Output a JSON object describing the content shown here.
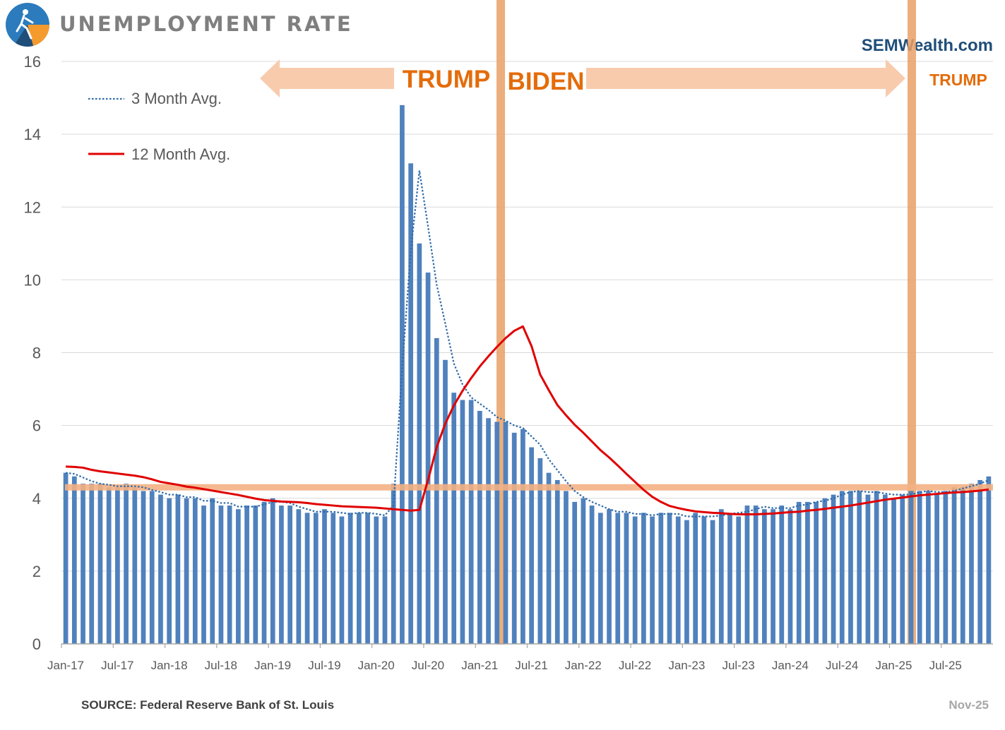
{
  "header": {
    "title": "UNEMPLOYMENT RATE",
    "brand": "SEMWealth.com"
  },
  "footer": {
    "source": "SOURCE:  Federal Reserve Bank of St. Louis",
    "date": "Nov-25"
  },
  "legend": {
    "three_month": "3 Month Avg.",
    "twelve_month": "12 Month Avg."
  },
  "annotations": {
    "trump_1": "TRUMP",
    "biden": "BIDEN",
    "trump_2": "TRUMP"
  },
  "colors": {
    "bar": "#4f81bd",
    "three_month_line": "#2e6aa8",
    "twelve_month_line": "#e00000",
    "highlight": "#f4b183",
    "band": "#e9a066",
    "label_orange": "#e46c0a",
    "brand_blue": "#1f4e79",
    "title_gray": "#7f7f7f"
  },
  "chart_data": {
    "type": "bar",
    "title": "UNEMPLOYMENT RATE",
    "xlabel": "",
    "ylabel": "",
    "ylim": [
      0,
      16
    ],
    "yticks": [
      0,
      2,
      4,
      6,
      8,
      10,
      12,
      14,
      16
    ],
    "xtick_labels": [
      "Jan-17",
      "Jul-17",
      "Jan-18",
      "Jul-18",
      "Jan-19",
      "Jul-19",
      "Jan-20",
      "Jul-20",
      "Jan-21",
      "Jul-21",
      "Jan-22",
      "Jul-22",
      "Jan-23",
      "Jul-23",
      "Jan-24",
      "Jul-24",
      "Jan-25",
      "Jul-25"
    ],
    "start_month": "Jan-17",
    "end_month": "Nov-25",
    "reference_line": 4.3,
    "administration_changes": [
      "Jan-21",
      "Jan-25"
    ],
    "series": [
      {
        "name": "Unemployment Rate",
        "type": "bar",
        "values": [
          4.7,
          4.6,
          4.4,
          4.4,
          4.4,
          4.3,
          4.3,
          4.4,
          4.3,
          4.2,
          4.2,
          4.1,
          4.0,
          4.1,
          4.0,
          4.0,
          3.8,
          4.0,
          3.8,
          3.8,
          3.7,
          3.8,
          3.8,
          3.9,
          4.0,
          3.8,
          3.8,
          3.7,
          3.6,
          3.6,
          3.7,
          3.6,
          3.5,
          3.6,
          3.6,
          3.6,
          3.5,
          3.5,
          4.4,
          14.8,
          13.2,
          11.0,
          10.2,
          8.4,
          7.8,
          6.9,
          6.7,
          6.7,
          6.4,
          6.2,
          6.1,
          6.1,
          5.8,
          5.9,
          5.4,
          5.1,
          4.7,
          4.5,
          4.2,
          3.9,
          4.0,
          3.8,
          3.6,
          3.7,
          3.6,
          3.6,
          3.5,
          3.6,
          3.5,
          3.6,
          3.6,
          3.5,
          3.4,
          3.6,
          3.5,
          3.4,
          3.7,
          3.6,
          3.5,
          3.8,
          3.8,
          3.7,
          3.7,
          3.8,
          3.7,
          3.9,
          3.9,
          3.9,
          4.0,
          4.1,
          4.2,
          4.2,
          4.2,
          4.1,
          4.2,
          4.1,
          4.0,
          4.1,
          4.2,
          4.2,
          4.2,
          4.1,
          4.2,
          4.3,
          4.3,
          4.4,
          4.5,
          4.6
        ]
      },
      {
        "name": "3 Month Avg.",
        "type": "line",
        "style": "dotted",
        "values": [
          4.7,
          4.67,
          4.57,
          4.47,
          4.4,
          4.37,
          4.33,
          4.33,
          4.33,
          4.3,
          4.23,
          4.17,
          4.1,
          4.1,
          4.03,
          4.03,
          3.93,
          3.93,
          3.87,
          3.87,
          3.77,
          3.77,
          3.77,
          3.83,
          3.9,
          3.9,
          3.87,
          3.77,
          3.7,
          3.63,
          3.63,
          3.63,
          3.6,
          3.57,
          3.6,
          3.6,
          3.57,
          3.53,
          3.8,
          7.57,
          10.8,
          13.0,
          11.47,
          9.87,
          8.8,
          7.7,
          7.13,
          6.77,
          6.6,
          6.43,
          6.23,
          6.13,
          6.0,
          5.93,
          5.7,
          5.47,
          5.07,
          4.77,
          4.47,
          4.2,
          4.03,
          3.9,
          3.8,
          3.7,
          3.63,
          3.63,
          3.57,
          3.57,
          3.53,
          3.57,
          3.57,
          3.57,
          3.5,
          3.5,
          3.5,
          3.5,
          3.53,
          3.57,
          3.6,
          3.63,
          3.7,
          3.77,
          3.73,
          3.73,
          3.73,
          3.8,
          3.83,
          3.9,
          3.93,
          4.0,
          4.1,
          4.17,
          4.2,
          4.17,
          4.17,
          4.13,
          4.1,
          4.1,
          4.1,
          4.17,
          4.2,
          4.17,
          4.17,
          4.2,
          4.27,
          4.33,
          4.4,
          4.5
        ]
      },
      {
        "name": "12 Month Avg.",
        "type": "line",
        "style": "solid",
        "values": [
          4.87,
          4.86,
          4.84,
          4.78,
          4.74,
          4.71,
          4.68,
          4.65,
          4.62,
          4.58,
          4.52,
          4.45,
          4.41,
          4.37,
          4.32,
          4.29,
          4.25,
          4.21,
          4.17,
          4.13,
          4.09,
          4.04,
          3.99,
          3.95,
          3.93,
          3.91,
          3.9,
          3.89,
          3.87,
          3.84,
          3.82,
          3.8,
          3.78,
          3.77,
          3.76,
          3.75,
          3.74,
          3.72,
          3.7,
          3.68,
          3.66,
          3.68,
          4.5,
          5.4,
          6.05,
          6.55,
          6.95,
          7.3,
          7.62,
          7.9,
          8.16,
          8.4,
          8.6,
          8.72,
          8.18,
          7.4,
          6.97,
          6.56,
          6.28,
          6.02,
          5.8,
          5.56,
          5.32,
          5.12,
          4.9,
          4.67,
          4.45,
          4.23,
          4.04,
          3.9,
          3.79,
          3.73,
          3.68,
          3.64,
          3.62,
          3.6,
          3.59,
          3.57,
          3.56,
          3.56,
          3.56,
          3.57,
          3.58,
          3.6,
          3.62,
          3.63,
          3.66,
          3.68,
          3.71,
          3.74,
          3.77,
          3.8,
          3.84,
          3.88,
          3.92,
          3.96,
          3.99,
          4.02,
          4.05,
          4.08,
          4.1,
          4.12,
          4.14,
          4.16,
          4.17,
          4.19,
          4.21,
          4.24
        ]
      }
    ]
  }
}
